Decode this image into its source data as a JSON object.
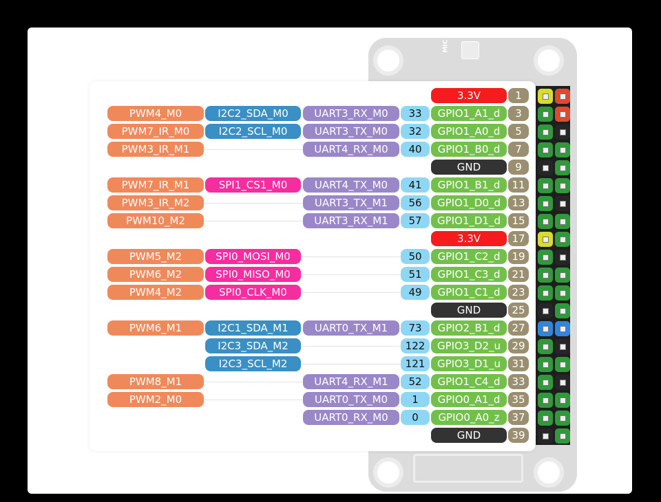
{
  "colors": {
    "pwm": "#f0895a",
    "i2c": "#3a8fc4",
    "spi": "#f52d9f",
    "uart": "#9a87c8",
    "num": "#8ed7f4",
    "gpio": "#72c04a",
    "power": "#f41c1c",
    "gnd": "#333333",
    "pin": "#9a8f70",
    "header": {
      "yellow": "#d8dc2e",
      "red": "#dd4a30",
      "green": "#2f9a3a",
      "black": "#262626",
      "blue": "#2f86e0"
    }
  },
  "board": {
    "mic_label": "MIC"
  },
  "rows": [
    {
      "pin": "1",
      "power": "3.3V",
      "hdr": [
        "yellow",
        "red"
      ]
    },
    {
      "pin": "3",
      "pwm": "PWM4_M0",
      "alt": "I2C2_SDA_M0",
      "alt_type": "i2c",
      "uart": "UART3_RX_M0",
      "num": "33",
      "gpio": "GPIO1_A1_d",
      "hdr": [
        "green",
        "red"
      ]
    },
    {
      "pin": "5",
      "pwm": "PWM7_IR_M0",
      "alt": "I2C2_SCL_M0",
      "alt_type": "i2c",
      "uart": "UART3_TX_M0",
      "num": "32",
      "gpio": "GPIO1_A0_d",
      "hdr": [
        "green",
        "black"
      ]
    },
    {
      "pin": "7",
      "pwm": "PWM3_IR_M1",
      "uart": "UART4_RX_M0",
      "num": "40",
      "gpio": "GPIO1_B0_d",
      "hdr": [
        "green",
        "green"
      ]
    },
    {
      "pin": "9",
      "gnd": "GND",
      "hdr": [
        "black",
        "green"
      ]
    },
    {
      "pin": "11",
      "pwm": "PWM7_IR_M1",
      "alt": "SPI1_CS1_M0",
      "alt_type": "spi",
      "uart": "UART4_TX_M0",
      "num": "41",
      "gpio": "GPIO1_B1_d",
      "hdr": [
        "green",
        "green"
      ]
    },
    {
      "pin": "13",
      "pwm": "PWM3_IR_M2",
      "uart": "UART3_TX_M1",
      "num": "56",
      "gpio": "GPIO1_D0_d",
      "hdr": [
        "green",
        "black"
      ]
    },
    {
      "pin": "15",
      "pwm": "PWM10_M2",
      "uart": "UART3_RX_M1",
      "num": "57",
      "gpio": "GPIO1_D1_d",
      "hdr": [
        "green",
        "green"
      ]
    },
    {
      "pin": "17",
      "power": "3.3V",
      "hdr": [
        "yellow",
        "green"
      ]
    },
    {
      "pin": "19",
      "pwm": "PWM5_M2",
      "alt": "SPI0_MOSI_M0",
      "alt_type": "spi",
      "num": "50",
      "gpio": "GPIO1_C2_d",
      "hdr": [
        "green",
        "black"
      ]
    },
    {
      "pin": "21",
      "pwm": "PWM6_M2",
      "alt": "SPI0_MISO_M0",
      "alt_type": "spi",
      "num": "51",
      "gpio": "GPIO1_C3_d",
      "hdr": [
        "green",
        "green"
      ]
    },
    {
      "pin": "23",
      "pwm": "PWM4_M2",
      "alt": "SPI0_CLK_M0",
      "alt_type": "spi",
      "num": "49",
      "gpio": "GPIO1_C1_d",
      "hdr": [
        "green",
        "green"
      ]
    },
    {
      "pin": "25",
      "gnd": "GND",
      "hdr": [
        "black",
        "green"
      ]
    },
    {
      "pin": "27",
      "pwm": "PWM6_M1",
      "alt": "I2C1_SDA_M1",
      "alt_type": "i2c",
      "uart": "UART0_TX_M1",
      "num": "73",
      "gpio": "GPIO2_B1_d",
      "hdr": [
        "blue",
        "blue"
      ]
    },
    {
      "pin": "29",
      "alt": "I2C3_SDA_M2",
      "alt_type": "i2c",
      "num": "122",
      "gpio": "GPIO3_D2_u",
      "hdr": [
        "green",
        "black"
      ]
    },
    {
      "pin": "31",
      "alt": "I2C3_SCL_M2",
      "alt_type": "i2c",
      "num": "121",
      "gpio": "GPIO3_D1_u",
      "hdr": [
        "green",
        "green"
      ]
    },
    {
      "pin": "33",
      "pwm": "PWM8_M1",
      "uart": "UART4_RX_M1",
      "num": "52",
      "gpio": "GPIO1_C4_d",
      "hdr": [
        "green",
        "black"
      ]
    },
    {
      "pin": "35",
      "pwm": "PWM2_M0",
      "uart": "UART0_TX_M0",
      "num": "1",
      "gpio": "GPIO0_A1_d",
      "hdr": [
        "green",
        "green"
      ]
    },
    {
      "pin": "37",
      "uart": "UART0_RX_M0",
      "num": "0",
      "gpio": "GPIO0_A0_z",
      "hdr": [
        "green",
        "green"
      ]
    },
    {
      "pin": "39",
      "gnd": "GND",
      "hdr": [
        "black",
        "green"
      ]
    }
  ]
}
